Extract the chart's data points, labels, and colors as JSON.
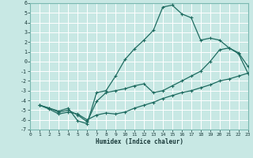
{
  "xlabel": "Humidex (Indice chaleur)",
  "xlim": [
    0,
    23
  ],
  "ylim": [
    -7,
    6
  ],
  "xticks": [
    0,
    1,
    2,
    3,
    4,
    5,
    6,
    7,
    8,
    9,
    10,
    11,
    12,
    13,
    14,
    15,
    16,
    17,
    18,
    19,
    20,
    21,
    22,
    23
  ],
  "yticks": [
    -7,
    -6,
    -5,
    -4,
    -3,
    -2,
    -1,
    0,
    1,
    2,
    3,
    4,
    5,
    6
  ],
  "bg_color": "#c8e8e4",
  "grid_color": "#ffffff",
  "line_color": "#1e6b60",
  "curve_max": [
    [
      1,
      -4.5
    ],
    [
      2,
      -4.8
    ],
    [
      3,
      -5.1
    ],
    [
      4,
      -4.8
    ],
    [
      5,
      -6.1
    ],
    [
      6,
      -6.4
    ],
    [
      7,
      -3.2
    ],
    [
      8,
      -3.0
    ],
    [
      9,
      -1.5
    ],
    [
      10,
      0.2
    ],
    [
      11,
      1.3
    ],
    [
      12,
      2.2
    ],
    [
      13,
      3.2
    ],
    [
      14,
      5.6
    ],
    [
      15,
      5.8
    ],
    [
      16,
      4.9
    ],
    [
      17,
      4.5
    ],
    [
      18,
      2.2
    ],
    [
      19,
      2.4
    ],
    [
      20,
      2.2
    ],
    [
      21,
      1.4
    ],
    [
      22,
      0.9
    ],
    [
      23,
      -0.5
    ]
  ],
  "curve_min": [
    [
      1,
      -4.5
    ],
    [
      2,
      -4.9
    ],
    [
      3,
      -5.4
    ],
    [
      4,
      -5.2
    ],
    [
      5,
      -5.4
    ],
    [
      6,
      -6.0
    ],
    [
      7,
      -5.5
    ],
    [
      8,
      -5.3
    ],
    [
      9,
      -5.4
    ],
    [
      10,
      -5.2
    ],
    [
      11,
      -4.8
    ],
    [
      12,
      -4.5
    ],
    [
      13,
      -4.2
    ],
    [
      14,
      -3.8
    ],
    [
      15,
      -3.5
    ],
    [
      16,
      -3.2
    ],
    [
      17,
      -3.0
    ],
    [
      18,
      -2.7
    ],
    [
      19,
      -2.4
    ],
    [
      20,
      -2.0
    ],
    [
      21,
      -1.8
    ],
    [
      22,
      -1.5
    ],
    [
      23,
      -1.2
    ]
  ],
  "curve_mid": [
    [
      1,
      -4.5
    ],
    [
      2,
      -4.8
    ],
    [
      3,
      -5.2
    ],
    [
      4,
      -5.0
    ],
    [
      5,
      -5.5
    ],
    [
      6,
      -6.2
    ],
    [
      7,
      -4.1
    ],
    [
      8,
      -3.2
    ],
    [
      9,
      -3.0
    ],
    [
      10,
      -2.8
    ],
    [
      11,
      -2.5
    ],
    [
      12,
      -2.3
    ],
    [
      13,
      -3.2
    ],
    [
      14,
      -3.0
    ],
    [
      15,
      -2.5
    ],
    [
      16,
      -2.0
    ],
    [
      17,
      -1.5
    ],
    [
      18,
      -1.0
    ],
    [
      19,
      0.0
    ],
    [
      20,
      1.2
    ],
    [
      21,
      1.4
    ],
    [
      22,
      0.8
    ],
    [
      23,
      -1.2
    ]
  ]
}
